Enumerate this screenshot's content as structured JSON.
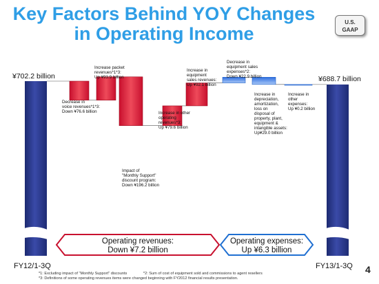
{
  "title_line1": "Key Factors Behind YOY Changes",
  "title_line2": "in Operating Income",
  "badge_line1": "U.S.",
  "badge_line2": "GAAP",
  "page_number": "4",
  "colors": {
    "title": "#2f9ee6",
    "total_bar": "#2b3a8c",
    "decrease_bar": "#d9283c",
    "expense_bar": "#3b82e6",
    "revenue_arrow": "#c8102e",
    "expense_arrow": "#1f6fd1"
  },
  "chart_data": {
    "type": "bar",
    "subtype": "waterfall",
    "unit": "¥ billion",
    "ylim": [
      0,
      702.2
    ],
    "start": {
      "category": "FY12/1-3Q",
      "label": "¥702.2 billion",
      "value": 702.2
    },
    "end": {
      "category": "FY13/1-3Q",
      "label": "¥688.7 billion",
      "value": 688.7
    },
    "steps": [
      {
        "lines": [
          "Decrease in",
          "voice revenues*1*3:",
          "Down ¥76.6 billion"
        ],
        "value": -76.6,
        "group": "revenue"
      },
      {
        "lines": [
          "Increase packet",
          "revenues*1*3:",
          "Up ¥93.9 billion"
        ],
        "value": 93.9,
        "group": "revenue"
      },
      {
        "lines": [
          "Impact of",
          "\"Monthly Support\"",
          "discount program:",
          "Down ¥196.2 billion"
        ],
        "value": -196.2,
        "group": "revenue"
      },
      {
        "lines": [
          "Increase in other",
          "operating",
          "revenues*3:",
          "Up ¥79.6 billion"
        ],
        "value": 79.6,
        "group": "revenue"
      },
      {
        "lines": [
          "Increase in",
          "equipment",
          "sales revenues:",
          "Up ¥92.1 billion"
        ],
        "value": 92.1,
        "group": "revenue"
      },
      {
        "lines": [
          "Decrease in",
          "equipment sales",
          "expenses*2:",
          "Down ¥22.9 billion"
        ],
        "value": 22.9,
        "group": "expense"
      },
      {
        "lines": [
          "Increase in",
          "depreciation,",
          "amortization,",
          "loss on",
          "disposal of",
          "property, plant,",
          "equipment &",
          "intangible assets:",
          "Up¥29.0 billion"
        ],
        "value": -29.0,
        "group": "expense"
      },
      {
        "lines": [
          "Increase in",
          "other",
          "expenses:",
          "Up ¥0.2 billion"
        ],
        "value": -0.2,
        "group": "expense"
      }
    ],
    "group_summaries": [
      {
        "group": "revenue",
        "line1": "Operating revenues:",
        "line2": "Down ¥7.2 billion"
      },
      {
        "group": "expense",
        "line1": "Operating expenses:",
        "line2": "Up ¥6.3 billion"
      }
    ]
  },
  "footnotes": [
    "*1: Excluding impact of \"Monthly Support\" discounts",
    "*2: Sum of cost of equipment sold and commissions to agent resellers",
    "*3: Definitions of some operating revenues items were changed beginning with FY2012 financial results presentation."
  ]
}
